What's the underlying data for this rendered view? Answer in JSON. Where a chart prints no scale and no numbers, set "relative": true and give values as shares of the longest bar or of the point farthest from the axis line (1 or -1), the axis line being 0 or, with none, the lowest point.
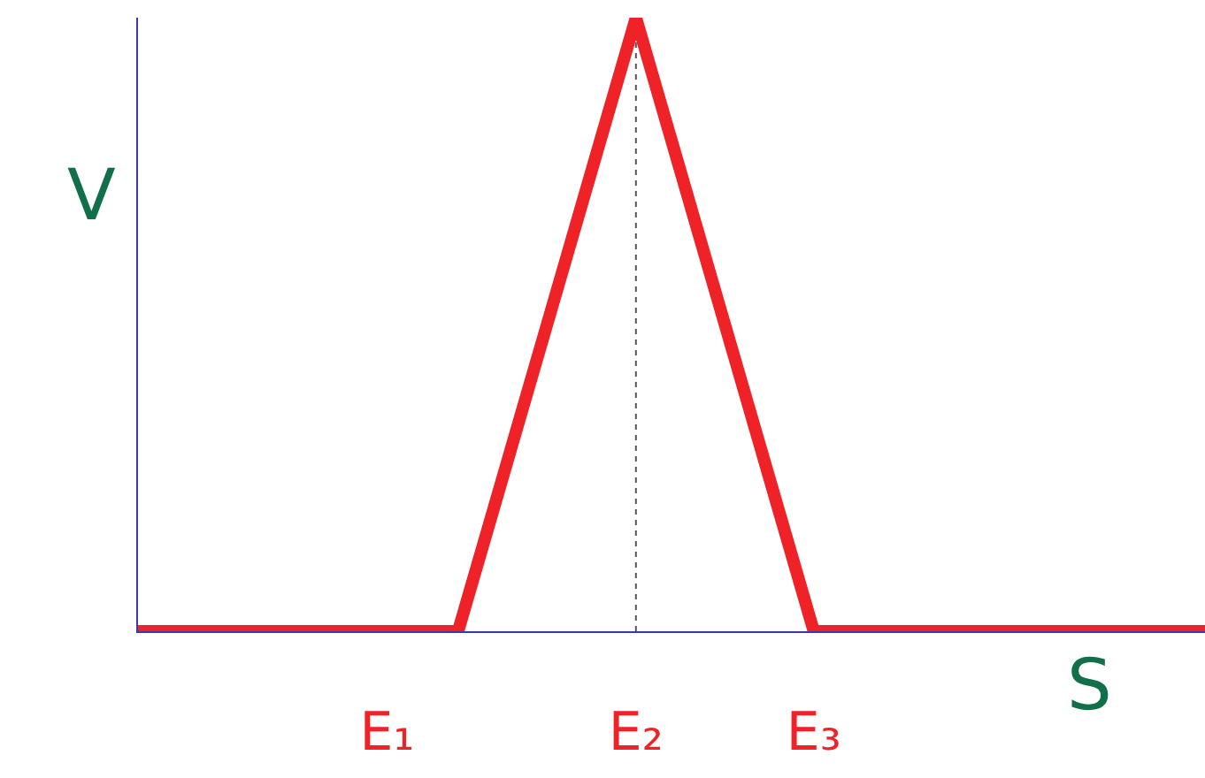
{
  "chart_data": {
    "type": "line",
    "relative": true,
    "xlabel": "S",
    "ylabel": "V",
    "categories": [
      null,
      null,
      null,
      null,
      null,
      null,
      null,
      "E₁",
      null,
      null,
      null,
      null,
      null,
      null,
      "E₂",
      null,
      null,
      null,
      null,
      "E₃",
      null,
      null,
      null,
      null,
      null,
      null,
      null,
      null,
      null,
      null,
      null
    ],
    "series": [
      {
        "color": "#ee2227",
        "values": [
          0,
          0,
          0,
          0,
          0,
          0,
          0,
          0,
          0,
          0,
          0.2,
          0.4,
          0.6,
          0.8,
          1,
          0.8,
          0.6,
          0.4,
          0.2,
          0,
          0,
          0,
          0,
          0,
          0,
          0,
          0,
          0,
          0,
          0,
          0
        ]
      }
    ],
    "ref_lines": [
      {
        "axis": "x",
        "value": "E₂",
        "color": "#555555",
        "line_style": "dotted"
      }
    ],
    "grid": false,
    "marker": "none",
    "line_style": "solid"
  }
}
